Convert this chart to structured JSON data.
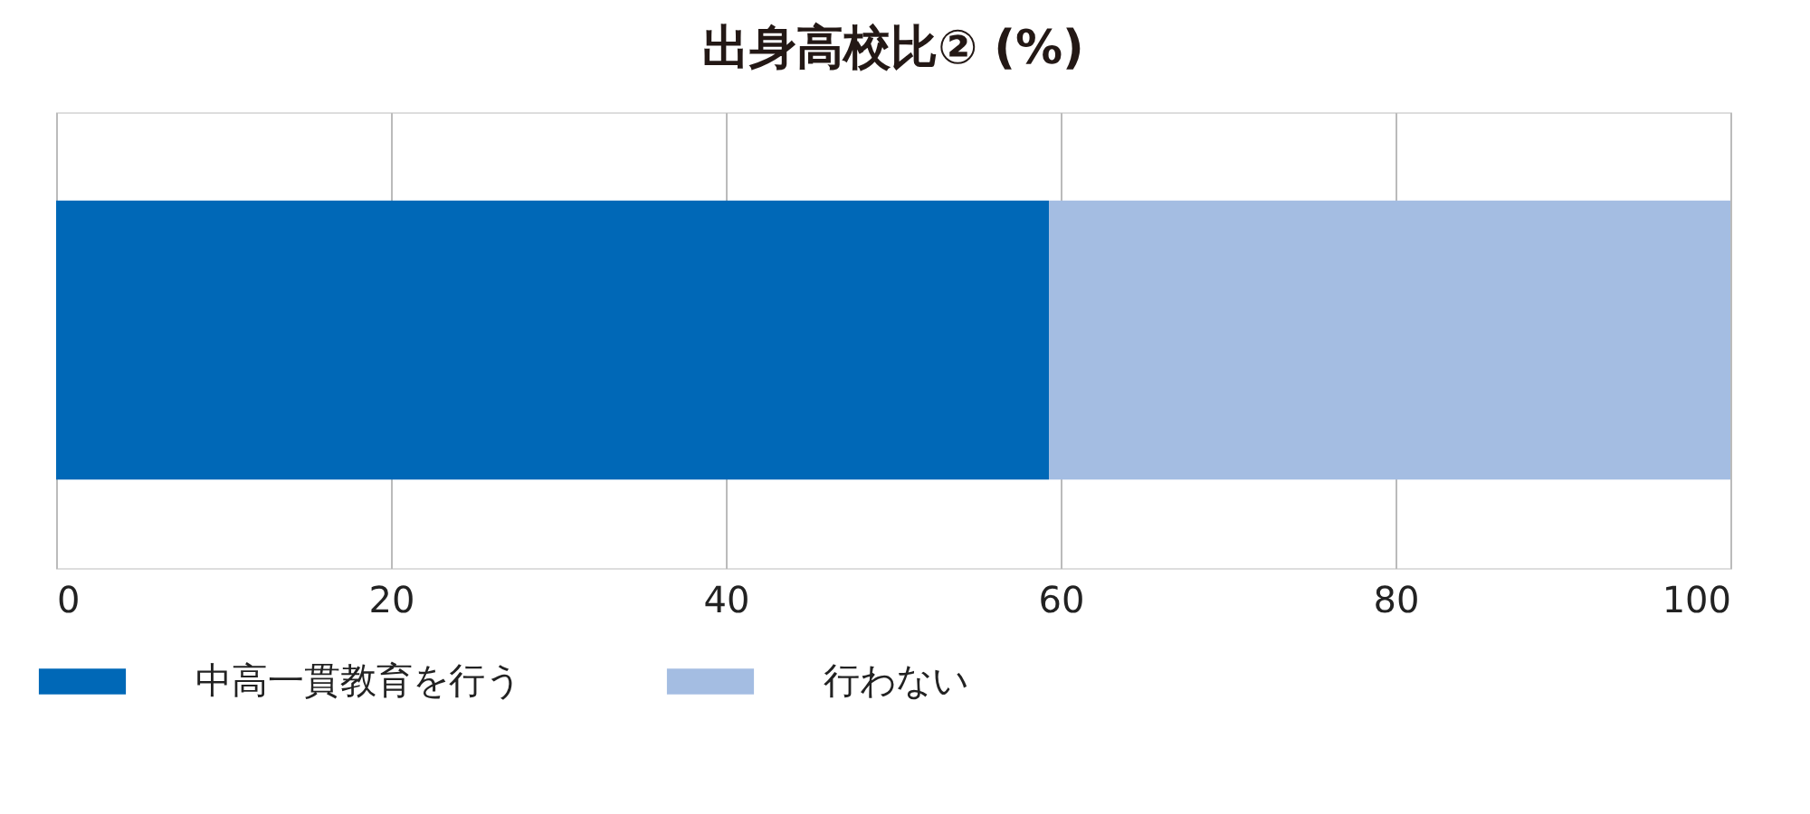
{
  "chart_data": {
    "type": "bar",
    "orientation": "horizontal",
    "stacked": true,
    "title": "出身高校比② (%)",
    "categories": [
      null
    ],
    "series": [
      {
        "name": "中高一貫教育を行う",
        "color": "#0068b7",
        "values": [
          59.3
        ]
      },
      {
        "name": "行わない",
        "color": "#a4bde2",
        "values": [
          40.7
        ]
      }
    ],
    "xlim": [
      0,
      100
    ],
    "xticks": [
      0,
      20,
      40,
      60,
      80,
      100
    ],
    "grid": "x",
    "legend": "bottom",
    "tick_labels": "x"
  }
}
